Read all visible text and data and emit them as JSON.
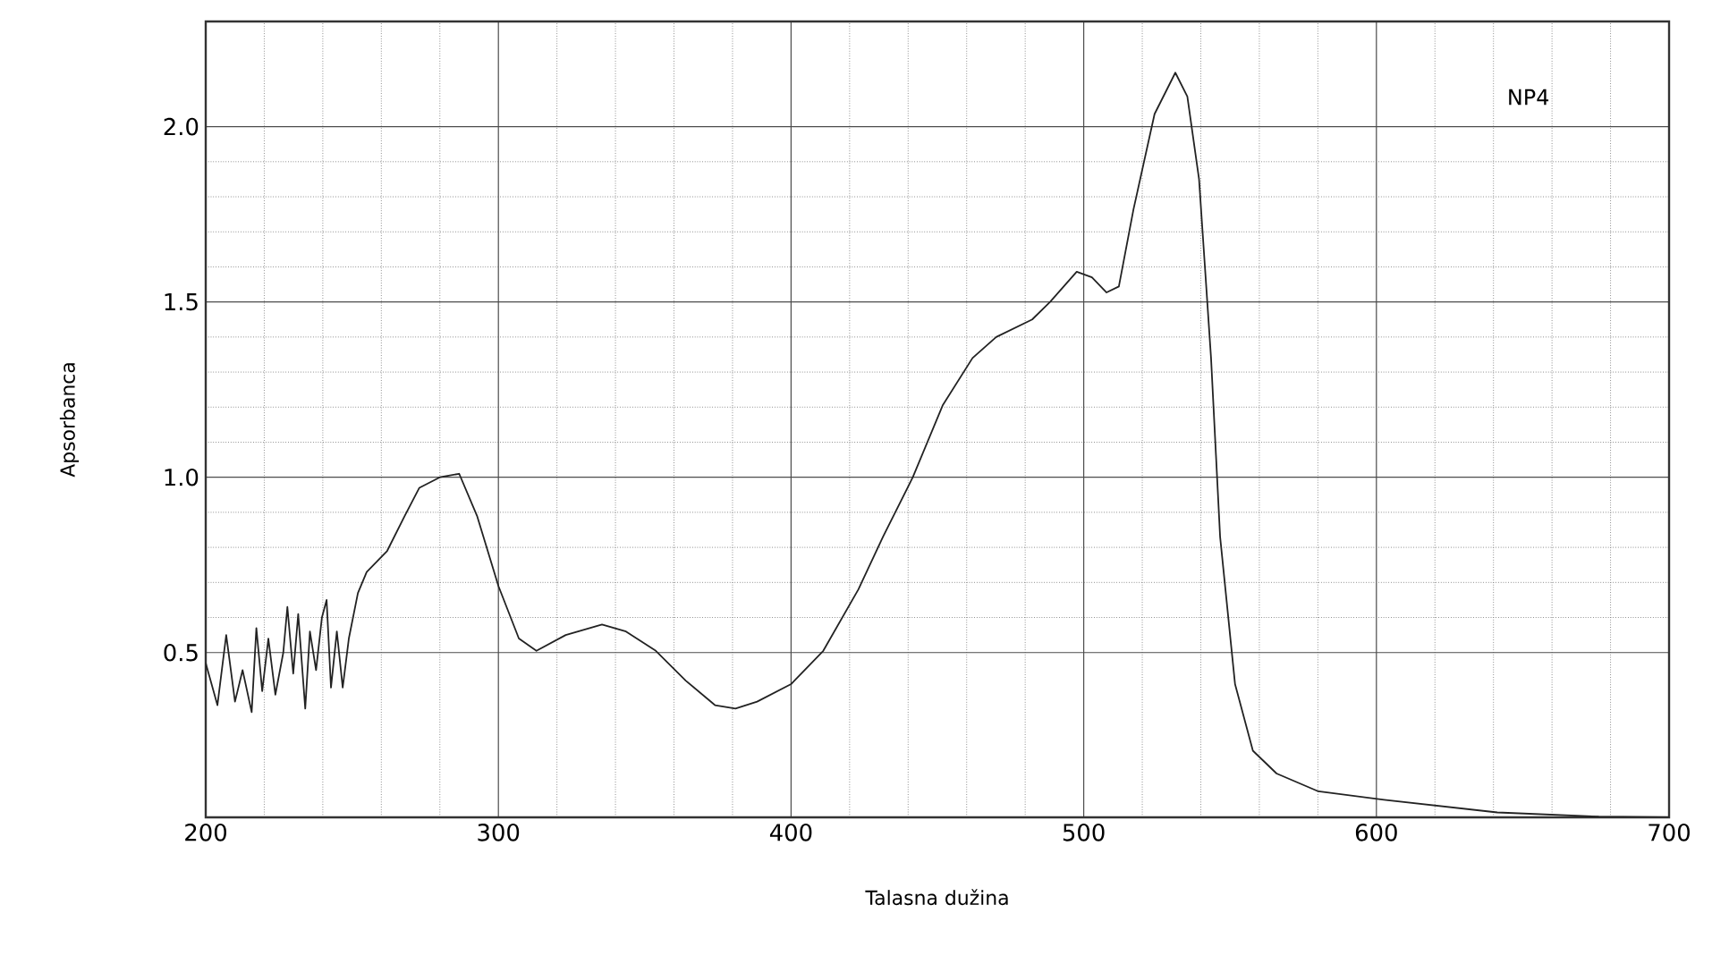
{
  "chart_data": {
    "type": "line",
    "xlabel": "Talasna dužina",
    "ylabel": "Apsorbanca",
    "series": [
      {
        "name": "NP4",
        "color": "#222222",
        "x": [
          200,
          204,
          207,
          210,
          212.6,
          215.7,
          217.3,
          219.3,
          221.4,
          223.8,
          226.5,
          227.9,
          229.9,
          231.6,
          234,
          235.6,
          237.7,
          239.7,
          241.3,
          242.8,
          244.8,
          246.8,
          248.9,
          252,
          255,
          262,
          268,
          273,
          280,
          286.6,
          292.7,
          300,
          307,
          313,
          323,
          335.4,
          343.6,
          353.8,
          364,
          374,
          381,
          388.4,
          400,
          411,
          423,
          431.4,
          441.6,
          451.8,
          462,
          470.1,
          482.4,
          488.5,
          497.6,
          502.8,
          507.8,
          512,
          517,
          524.2,
          531.3,
          535.4,
          539.4,
          543.5,
          546.6,
          551.7,
          557.8,
          565.9,
          580.2,
          602.6,
          641.3,
          676,
          700
        ],
        "values": [
          0.47,
          0.35,
          0.55,
          0.36,
          0.45,
          0.33,
          0.57,
          0.39,
          0.54,
          0.38,
          0.5,
          0.63,
          0.44,
          0.61,
          0.34,
          0.56,
          0.45,
          0.6,
          0.65,
          0.4,
          0.56,
          0.4,
          0.54,
          0.67,
          0.73,
          0.79,
          0.89,
          0.97,
          1.0,
          1.01,
          0.89,
          0.69,
          0.54,
          0.505,
          0.55,
          0.58,
          0.56,
          0.505,
          0.42,
          0.35,
          0.34,
          0.36,
          0.41,
          0.505,
          0.68,
          0.83,
          1.0,
          1.205,
          1.34,
          1.4,
          1.45,
          1.5,
          1.586,
          1.57,
          1.527,
          1.544,
          1.764,
          2.036,
          2.154,
          2.086,
          1.85,
          1.34,
          0.83,
          0.41,
          0.22,
          0.155,
          0.104,
          0.08,
          0.044,
          0.032,
          0.03
        ]
      }
    ],
    "xlim": [
      200,
      700
    ],
    "xticks": [
      200,
      300,
      400,
      500,
      600,
      700
    ],
    "ylim": [
      0.03,
      2.3
    ],
    "yticks": [
      0.5,
      {
        "value": 1,
        "label": "1.0"
      },
      1.5,
      {
        "value": 2,
        "label": "2.0"
      }
    ],
    "grid": true,
    "marker": "none",
    "line_style": "solid",
    "legend": false
  }
}
